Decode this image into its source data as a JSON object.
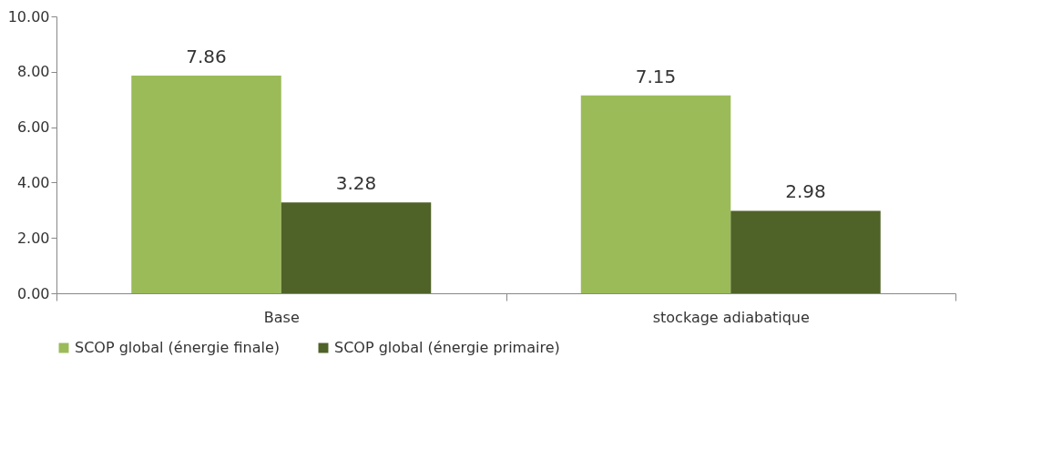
{
  "chart_data": {
    "type": "bar",
    "categories": [
      "Base",
      "stockage adiabatique"
    ],
    "series": [
      {
        "name": "SCOP global (énergie finale)",
        "color": "#9bbb59",
        "values": [
          7.86,
          7.15
        ]
      },
      {
        "name": "SCOP global (énergie primaire)",
        "color": "#4f6228",
        "values": [
          3.28,
          2.98
        ]
      }
    ],
    "ylim": [
      0,
      10
    ],
    "yticks": [
      {
        "value": 0,
        "label": "0.00"
      },
      {
        "value": 2,
        "label": "2.00"
      },
      {
        "value": 4,
        "label": "4.00"
      },
      {
        "value": 6,
        "label": "6.00"
      },
      {
        "value": 8,
        "label": "8.00"
      },
      {
        "value": 10,
        "label": "10.00"
      }
    ],
    "grid": false,
    "legend": "bottom",
    "data_labels": true
  }
}
